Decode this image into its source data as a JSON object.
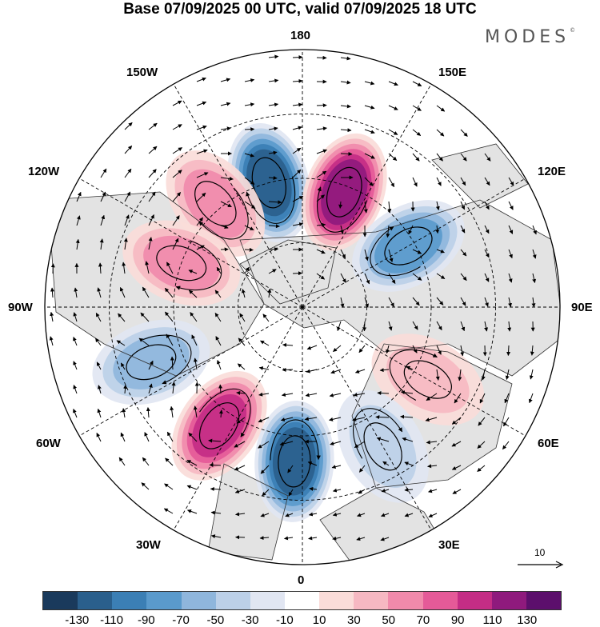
{
  "title": "Base 07/09/2025 00 UTC, valid 07/09/2025 18 UTC",
  "brand": "MODES",
  "brand_mark": "©",
  "longitude_labels": {
    "top": "180",
    "bottom": "0",
    "left": "90W",
    "right": "90E",
    "nw1": "150W",
    "nw2": "120W",
    "sw1": "60W",
    "sw2": "30W",
    "ne1": "150E",
    "ne2": "120E",
    "se1": "60E",
    "se2": "30E"
  },
  "vector_reference": "10",
  "colors": {
    "land_grey": "#e3e3e3",
    "blues": [
      "#1a3a5c",
      "#2a5f8c",
      "#3b7fb5",
      "#5a9acc",
      "#8fb6dc",
      "#bcd0e8",
      "#e1e6f2"
    ],
    "reds": [
      "#fadcd9",
      "#f6b8c2",
      "#f08aab",
      "#e55a98",
      "#c42d85",
      "#8f1a7d",
      "#5c0f6c"
    ]
  },
  "colorbar": {
    "colors": [
      "#1a3a5c",
      "#2a5f8c",
      "#3b7fb5",
      "#5a9acc",
      "#8fb6dc",
      "#bcd0e8",
      "#e1e6f2",
      "#ffffff",
      "#fadcd9",
      "#f6b8c2",
      "#f08aab",
      "#e55a98",
      "#c42d85",
      "#8f1a7d",
      "#5c0f6c"
    ],
    "ticks": [
      "-130",
      "-110",
      "-90",
      "-70",
      "-50",
      "-30",
      "-10",
      "10",
      "30",
      "50",
      "70",
      "90",
      "110",
      "130"
    ]
  },
  "anomaly_centers": [
    {
      "lon": -165,
      "lat": 50,
      "value": -110
    },
    {
      "lon": 160,
      "lat": 52,
      "value": 110
    },
    {
      "lon": -140,
      "lat": 48,
      "value": 55
    },
    {
      "lon": -110,
      "lat": 50,
      "value": 60
    },
    {
      "lon": 120,
      "lat": 52,
      "value": -70
    },
    {
      "lon": -70,
      "lat": 40,
      "value": -65
    },
    {
      "lon": -35,
      "lat": 45,
      "value": 90
    },
    {
      "lon": -3,
      "lat": 42,
      "value": -110
    },
    {
      "lon": 60,
      "lat": 45,
      "value": 45
    },
    {
      "lon": 30,
      "lat": 40,
      "value": -40
    }
  ]
}
